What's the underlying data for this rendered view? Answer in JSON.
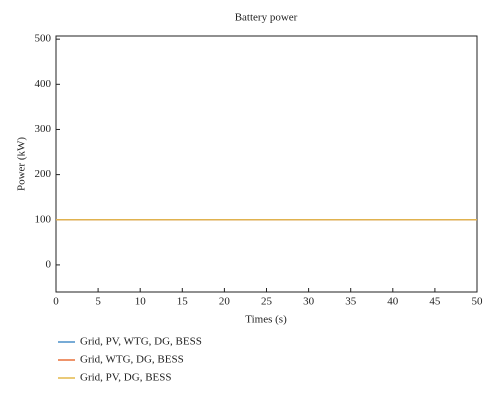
{
  "chart_data": {
    "type": "line",
    "title": "Battery power",
    "x_label": "Times (s)",
    "y_label": "Power (kW)",
    "x": [
      0,
      50
    ],
    "series": [
      {
        "name": "Grid, PV, WTG, DG, BESS",
        "color": "#4a8fc8",
        "values": [
          100,
          100
        ]
      },
      {
        "name": "Grid, WTG, DG, BESS",
        "color": "#e8703a",
        "values": [
          100,
          100
        ]
      },
      {
        "name": "Grid, PV, DG, BESS",
        "color": "#e3b94c",
        "values": [
          100,
          100
        ]
      }
    ],
    "xlim": [
      0,
      50
    ],
    "xticks": [
      0,
      5,
      10,
      15,
      20,
      25,
      30,
      35,
      40,
      45,
      50
    ],
    "ylim": [
      -60,
      507
    ],
    "yticks": [
      0,
      100,
      200,
      300,
      400,
      500
    ],
    "legend": "below"
  }
}
